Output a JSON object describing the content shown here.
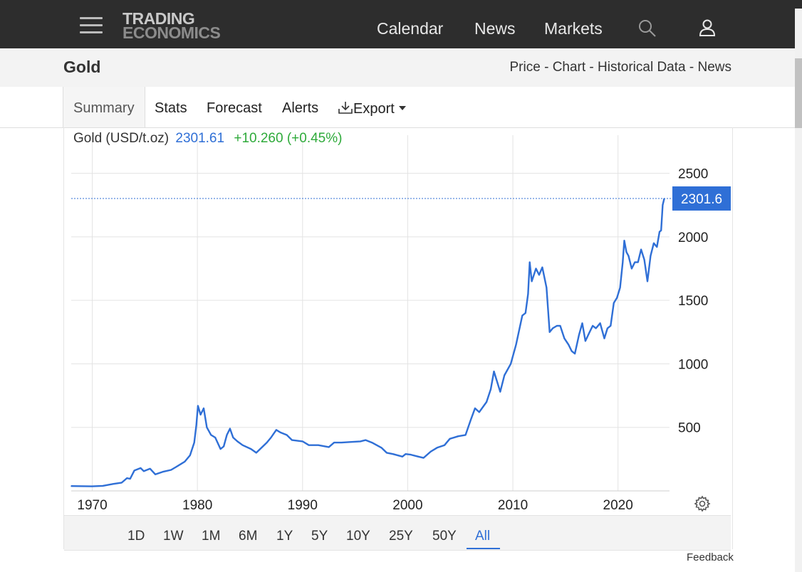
{
  "header": {
    "logo_line1": "TRADING",
    "logo_line2": "ECONOMICS",
    "nav": [
      "Calendar",
      "News",
      "Markets"
    ]
  },
  "page": {
    "title": "Gold",
    "sublinks": [
      "Price",
      "Chart",
      "Historical Data",
      "News"
    ]
  },
  "tabs": [
    "Summary",
    "Stats",
    "Forecast",
    "Alerts",
    "Export"
  ],
  "legend": {
    "name": "Gold (USD/t.oz)",
    "price": "2301.61",
    "change": "+10.260 (+0.45%)"
  },
  "ranges": [
    "1D",
    "1W",
    "1M",
    "6M",
    "1Y",
    "5Y",
    "10Y",
    "25Y",
    "50Y",
    "All"
  ],
  "active_range": "All",
  "feedback": "Feedback",
  "colors": {
    "line": "#2f6fd6",
    "up": "#2eaa3a",
    "topbar": "#2d2d2d"
  },
  "chart_data": {
    "type": "line",
    "title": "",
    "xlabel": "",
    "ylabel": "",
    "xlim": [
      1968.0,
      2024.9
    ],
    "ylim": [
      0,
      2800
    ],
    "yticks": [
      500,
      1000,
      1500,
      2000,
      2500
    ],
    "xticks": [
      1970,
      1980,
      1990,
      2000,
      2010,
      2020
    ],
    "last_value_label": "2301.6",
    "last_value": 2301.6,
    "series": [
      {
        "x": [
          1968.0,
          1970.0,
          1971.0,
          1972.0,
          1972.8,
          1973.3,
          1973.6,
          1974.0,
          1974.6,
          1974.9,
          1975.5,
          1976.0,
          1976.7,
          1977.5,
          1978.0,
          1978.8,
          1979.3,
          1979.7,
          1979.9,
          1980.05,
          1980.3,
          1980.6,
          1980.9,
          1981.3,
          1981.7,
          1982.2,
          1982.5,
          1982.8,
          1983.1,
          1983.4,
          1983.8,
          1984.3,
          1985.1,
          1985.6,
          1986.1,
          1986.6,
          1987.0,
          1987.5,
          1987.9,
          1988.5,
          1989.0,
          1990.0,
          1990.6,
          1991.5,
          1992.5,
          1993.0,
          1993.7,
          1994.5,
          1995.5,
          1996.0,
          1996.6,
          1997.5,
          1998.0,
          1998.6,
          1999.5,
          1999.8,
          2000.3,
          2001.0,
          2001.5,
          2002.2,
          2002.8,
          2003.5,
          2004.0,
          2004.8,
          2005.5,
          2006.0,
          2006.4,
          2006.8,
          2007.5,
          2007.9,
          2008.2,
          2008.5,
          2008.8,
          2009.2,
          2009.8,
          2010.3,
          2010.9,
          2011.2,
          2011.45,
          2011.6,
          2011.8,
          2012.2,
          2012.5,
          2012.8,
          2013.2,
          2013.5,
          2013.8,
          2014.2,
          2014.5,
          2014.9,
          2015.3,
          2015.6,
          2015.9,
          2016.3,
          2016.6,
          2016.9,
          2017.3,
          2017.6,
          2017.9,
          2018.3,
          2018.7,
          2019.0,
          2019.3,
          2019.6,
          2019.9,
          2020.2,
          2020.45,
          2020.6,
          2020.8,
          2021.0,
          2021.3,
          2021.6,
          2021.9,
          2022.2,
          2022.5,
          2022.8,
          2023.1,
          2023.4,
          2023.7,
          2023.95,
          2024.1,
          2024.25,
          2024.4
        ],
        "y": [
          38,
          36,
          40,
          55,
          65,
          100,
          95,
          160,
          180,
          155,
          175,
          130,
          150,
          165,
          190,
          230,
          280,
          380,
          520,
          670,
          600,
          650,
          500,
          440,
          420,
          330,
          350,
          440,
          490,
          420,
          390,
          360,
          330,
          300,
          340,
          380,
          420,
          480,
          460,
          440,
          400,
          390,
          360,
          360,
          345,
          380,
          380,
          385,
          390,
          400,
          380,
          340,
          300,
          290,
          270,
          290,
          285,
          270,
          260,
          310,
          340,
          360,
          410,
          430,
          440,
          560,
          650,
          620,
          700,
          800,
          940,
          860,
          780,
          910,
          1000,
          1150,
          1380,
          1400,
          1550,
          1800,
          1650,
          1750,
          1700,
          1760,
          1600,
          1250,
          1280,
          1300,
          1300,
          1200,
          1150,
          1100,
          1080,
          1230,
          1320,
          1180,
          1250,
          1300,
          1280,
          1320,
          1200,
          1280,
          1300,
          1480,
          1520,
          1600,
          1800,
          1970,
          1880,
          1850,
          1750,
          1800,
          1800,
          1900,
          1820,
          1650,
          1850,
          1950,
          1920,
          2040,
          2050,
          2250,
          2301.6
        ]
      }
    ]
  }
}
